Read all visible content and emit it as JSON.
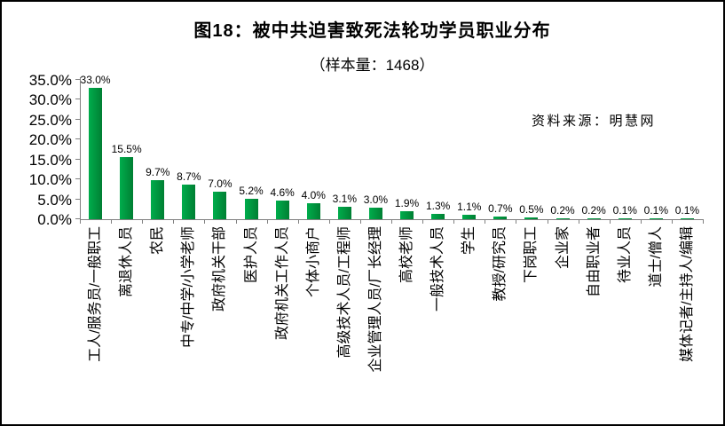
{
  "chart_data": {
    "type": "bar",
    "title": "图18：被中共迫害致死法轮功学员职业分布",
    "subtitle": "（样本量：1468）",
    "source": "资料来源：明慧网",
    "categories": [
      "工人/服务员/一般职工",
      "离退休人员",
      "农民",
      "中专/中学/小学老师",
      "政府机关干部",
      "医护人员",
      "政府机关工作人员",
      "个体小商户",
      "高级技术人员/工程师",
      "企业管理人员/厂长经理",
      "高校老师",
      "一般技术人员",
      "学生",
      "教授/研究员",
      "下岗职工",
      "企业家",
      "自由职业者",
      "待业人员",
      "道士/僧人",
      "媒体记者/主持人/编辑"
    ],
    "values": [
      33.0,
      15.5,
      9.7,
      8.7,
      7.0,
      5.2,
      4.6,
      4.0,
      3.1,
      3.0,
      1.9,
      1.3,
      1.1,
      0.7,
      0.5,
      0.2,
      0.2,
      0.1,
      0.1,
      0.1
    ],
    "value_labels": [
      "33.0%",
      "15.5%",
      "9.7%",
      "8.7%",
      "7.0%",
      "5.2%",
      "4.6%",
      "4.0%",
      "3.1%",
      "3.0%",
      "1.9%",
      "1.3%",
      "1.1%",
      "0.7%",
      "0.5%",
      "0.2%",
      "0.2%",
      "0.1%",
      "0.1%",
      "0.1%"
    ],
    "xlabel": "",
    "ylabel": "",
    "ylim": [
      0,
      35
    ],
    "ytick_step": 5,
    "ytick_labels": [
      "0.0%",
      "5.0%",
      "10.0%",
      "15.0%",
      "20.0%",
      "25.0%",
      "30.0%",
      "35.0%"
    ],
    "grid": false,
    "legend": "none",
    "category_text_rotation_deg": -90,
    "bar_color_left": "#00AD4C",
    "bar_color_right": "#007F33",
    "axis_color": "#808080",
    "text_color": "#000000",
    "background_color": "#ffffff"
  }
}
